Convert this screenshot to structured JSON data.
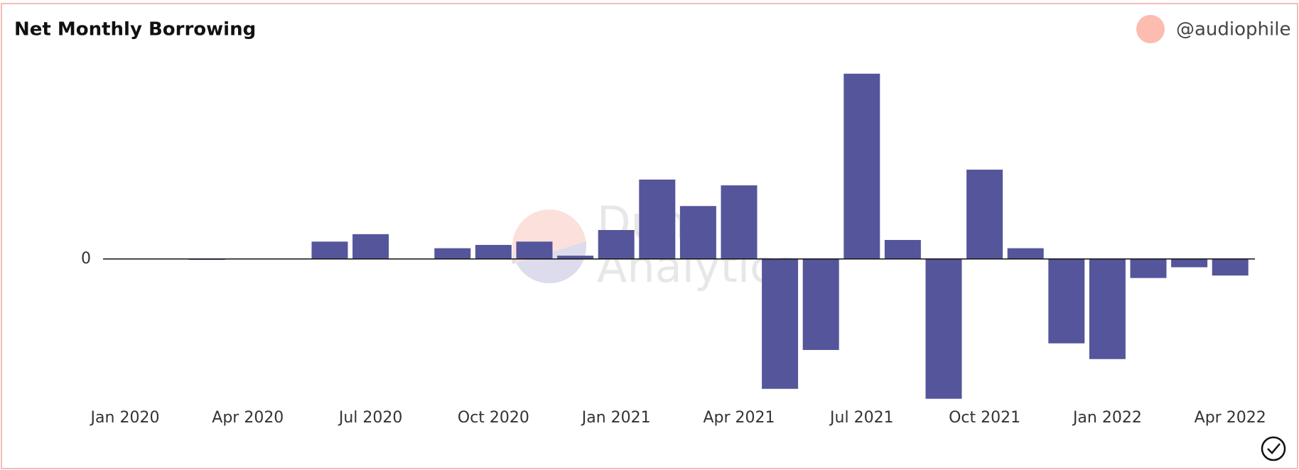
{
  "chart_data": {
    "type": "bar",
    "title": "Net Monthly Borrowing",
    "author": "@audiophile",
    "watermark": [
      "Dune",
      "Analytics"
    ],
    "categories": [
      "Jan 2020",
      null,
      null,
      "Apr 2020",
      null,
      null,
      "Jul 2020",
      null,
      null,
      "Oct 2020",
      null,
      null,
      "Jan 2021",
      null,
      null,
      "Apr 2021",
      null,
      null,
      "Jul 2021",
      null,
      null,
      "Oct 2021",
      null,
      null,
      "Jan 2022",
      null,
      null,
      "Apr 2022"
    ],
    "values": [
      0,
      0.5,
      -1,
      0,
      0,
      21,
      30,
      0,
      13,
      17,
      21,
      4,
      35,
      96,
      64,
      89,
      -157,
      -110,
      224,
      23,
      -169,
      108,
      13,
      -102,
      -121,
      -23,
      -10,
      -20
    ],
    "color": "#55559b",
    "ylim": [
      -177,
      253
    ],
    "yticks": [
      0
    ]
  }
}
